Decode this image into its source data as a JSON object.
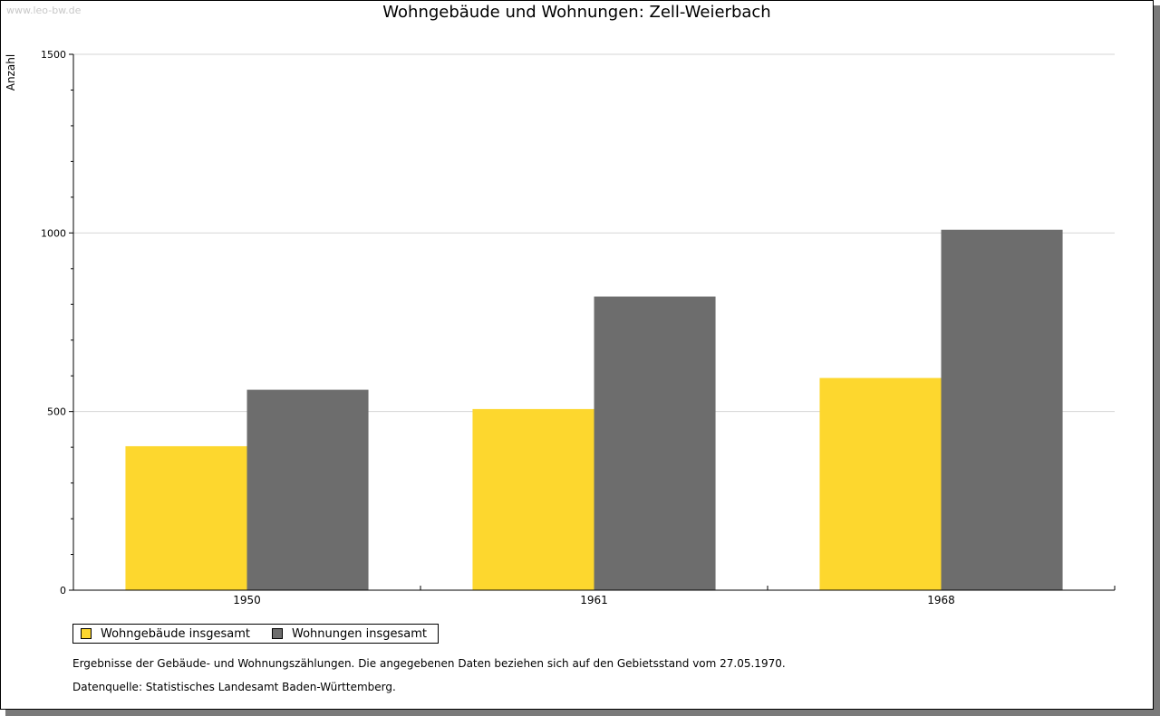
{
  "watermark": "www.leo-bw.de",
  "chart_data": {
    "type": "bar",
    "title": "Wohngebäude und Wohnungen: Zell-Weierbach",
    "ylabel": "Anzahl",
    "xlabel": "",
    "categories": [
      "1950",
      "1961",
      "1968"
    ],
    "ylim": [
      0,
      1500
    ],
    "yticks": [
      0,
      500,
      1000,
      1500
    ],
    "series": [
      {
        "name": "Wohngebäude insgesamt",
        "color": "#fdd72e",
        "values": [
          403,
          507,
          594
        ]
      },
      {
        "name": "Wohnungen insgesamt",
        "color": "#6d6d6d",
        "values": [
          561,
          822,
          1009
        ]
      }
    ],
    "grid": true,
    "legend": "bottom-left"
  },
  "notes": [
    "Ergebnisse der Gebäude- und Wohnungszählungen. Die angegebenen Daten beziehen sich auf den Gebietsstand vom 27.05.1970.",
    "Datenquelle: Statistisches Landesamt Baden-Württemberg."
  ]
}
